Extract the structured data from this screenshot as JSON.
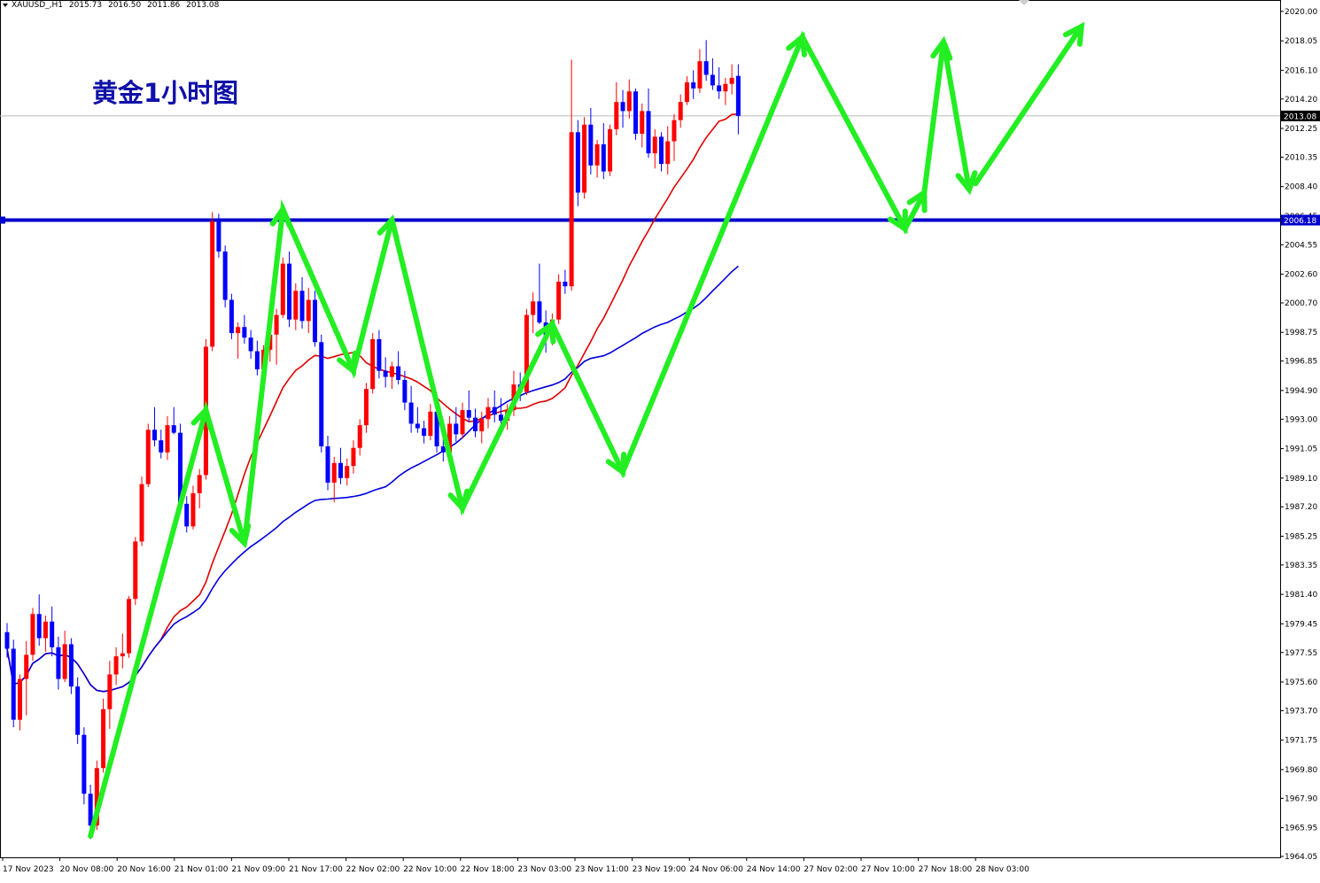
{
  "header": {
    "symbol": "XAUUSD_,H1",
    "open": "2015.73",
    "high": "2016.50",
    "low": "2011.86",
    "close": "2013.08"
  },
  "annotation": "黄金1小时图",
  "colors": {
    "bull": "#ff0000",
    "bear": "#0000ff",
    "ma_fast": "#e00000",
    "ma_slow": "#0000dd",
    "support": "#0000cc",
    "arrow": "#22ee22",
    "grid_bg": "#ffffff"
  },
  "chart_data": {
    "type": "candlestick",
    "timeframe": "H1",
    "ylim": [
      1964.05,
      2020.05
    ],
    "y_ticks": [
      "2020.00",
      "2018.05",
      "2016.10",
      "2014.20",
      "2012.25",
      "2010.35",
      "2008.40",
      "2006.45",
      "2004.55",
      "2002.60",
      "2000.70",
      "1998.75",
      "1996.85",
      "1994.90",
      "1993.00",
      "1991.05",
      "1989.10",
      "1987.20",
      "1985.25",
      "1983.35",
      "1981.40",
      "1979.45",
      "1977.55",
      "1975.60",
      "1973.70",
      "1971.75",
      "1969.80",
      "1967.90",
      "1965.95",
      "1964.05"
    ],
    "x_labels": [
      "17 Nov 2023",
      "20 Nov 08:00",
      "20 Nov 16:00",
      "21 Nov 01:00",
      "21 Nov 09:00",
      "21 Nov 17:00",
      "22 Nov 02:00",
      "22 Nov 10:00",
      "22 Nov 18:00",
      "23 Nov 03:00",
      "23 Nov 11:00",
      "23 Nov 19:00",
      "24 Nov 06:00",
      "24 Nov 14:00",
      "27 Nov 02:00",
      "27 Nov 10:00",
      "27 Nov 18:00",
      "28 Nov 03:00"
    ],
    "current_price": "2013.08",
    "support_level": "2006.18",
    "candles": [
      [
        1978.9,
        1979.5,
        1977.2,
        1977.8
      ],
      [
        1977.8,
        1978.4,
        1972.6,
        1973.1
      ],
      [
        1973.1,
        1976.1,
        1972.4,
        1975.8
      ],
      [
        1975.8,
        1978.3,
        1973.4,
        1977.4
      ],
      [
        1977.4,
        1980.5,
        1977.0,
        1980.1
      ],
      [
        1980.1,
        1981.4,
        1978.0,
        1978.5
      ],
      [
        1978.5,
        1980.0,
        1977.6,
        1979.6
      ],
      [
        1979.6,
        1980.6,
        1977.3,
        1977.9
      ],
      [
        1977.9,
        1978.6,
        1975.1,
        1975.8
      ],
      [
        1975.8,
        1979.0,
        1975.6,
        1978.1
      ],
      [
        1978.1,
        1978.5,
        1974.8,
        1975.3
      ],
      [
        1975.3,
        1975.9,
        1971.5,
        1972.1
      ],
      [
        1972.1,
        1972.6,
        1967.5,
        1968.2
      ],
      [
        1968.2,
        1968.8,
        1965.2,
        1966.1
      ],
      [
        1966.1,
        1970.4,
        1965.8,
        1969.9
      ],
      [
        1969.9,
        1974.5,
        1969.6,
        1973.8
      ],
      [
        1973.8,
        1977.0,
        1972.5,
        1976.1
      ],
      [
        1976.1,
        1977.9,
        1975.4,
        1977.3
      ],
      [
        1977.3,
        1978.8,
        1976.5,
        1977.5
      ],
      [
        1977.5,
        1981.3,
        1977.2,
        1981.1
      ],
      [
        1981.1,
        1985.2,
        1980.7,
        1984.9
      ],
      [
        1984.9,
        1989.2,
        1984.6,
        1988.7
      ],
      [
        1988.7,
        1992.7,
        1988.5,
        1992.3
      ],
      [
        1992.3,
        1993.8,
        1991.2,
        1991.6
      ],
      [
        1991.6,
        1992.3,
        1990.4,
        1990.8
      ],
      [
        1990.8,
        1993.2,
        1990.3,
        1992.6
      ],
      [
        1992.6,
        1993.8,
        1992.0,
        1992.1
      ],
      [
        1992.1,
        1992.7,
        1986.9,
        1987.4
      ],
      [
        1987.4,
        1987.9,
        1985.5,
        1985.9
      ],
      [
        1985.9,
        1988.6,
        1985.7,
        1988.1
      ],
      [
        1988.1,
        1989.7,
        1987.1,
        1989.3
      ],
      [
        1989.3,
        1998.3,
        1989.0,
        1997.8
      ],
      [
        1997.8,
        2006.7,
        1997.5,
        2006.1
      ],
      [
        2006.1,
        2006.6,
        2003.7,
        2004.1
      ],
      [
        2004.1,
        2004.5,
        2000.4,
        2000.9
      ],
      [
        2000.9,
        2001.3,
        1998.3,
        1998.7
      ],
      [
        1998.7,
        1999.4,
        1997.0,
        1999.1
      ],
      [
        1999.1,
        1999.9,
        1998.0,
        1998.4
      ],
      [
        1998.4,
        1998.9,
        1997.0,
        1997.5
      ],
      [
        1997.5,
        1998.2,
        1995.9,
        1996.3
      ],
      [
        1996.3,
        1997.9,
        1995.8,
        1997.6
      ],
      [
        1997.6,
        1998.9,
        1996.8,
        1998.6
      ],
      [
        1998.6,
        2000.3,
        1996.6,
        1999.9
      ],
      [
        1999.9,
        2003.7,
        1999.7,
        2003.3
      ],
      [
        2003.3,
        2004.1,
        1999.1,
        1999.6
      ],
      [
        1999.6,
        2002.0,
        1998.9,
        2001.5
      ],
      [
        2001.5,
        2002.4,
        1999.0,
        1999.5
      ],
      [
        1999.5,
        2001.7,
        1998.7,
        2000.9
      ],
      [
        2000.9,
        2001.5,
        1997.8,
        1998.1
      ],
      [
        1998.1,
        1998.6,
        1990.8,
        1991.2
      ],
      [
        1991.2,
        1991.9,
        1988.3,
        1988.8
      ],
      [
        1988.8,
        1990.5,
        1987.5,
        1990.1
      ],
      [
        1990.1,
        1991.1,
        1988.7,
        1989.1
      ],
      [
        1989.1,
        1990.4,
        1988.6,
        1989.9
      ],
      [
        1989.9,
        1991.6,
        1989.4,
        1991.1
      ],
      [
        1991.1,
        1993.0,
        1990.6,
        1992.6
      ],
      [
        1992.6,
        1995.4,
        1992.1,
        1995.0
      ],
      [
        1995.0,
        1998.7,
        1994.7,
        1998.3
      ],
      [
        1998.3,
        1998.9,
        1995.7,
        1996.2
      ],
      [
        1996.2,
        1997.1,
        1995.1,
        1995.8
      ],
      [
        1995.8,
        1996.8,
        1995.0,
        1996.5
      ],
      [
        1996.5,
        1997.5,
        1995.3,
        1995.6
      ],
      [
        1995.6,
        1996.2,
        1993.6,
        1994.1
      ],
      [
        1994.1,
        1995.2,
        1992.1,
        1992.7
      ],
      [
        1992.7,
        1993.8,
        1992.1,
        1992.4
      ],
      [
        1992.4,
        1992.9,
        1991.4,
        1991.9
      ],
      [
        1991.9,
        1994.0,
        1991.6,
        1993.5
      ],
      [
        1993.5,
        1994.1,
        1990.8,
        1991.2
      ],
      [
        1991.2,
        1992.1,
        1990.2,
        1990.8
      ],
      [
        1990.8,
        1993.2,
        1990.5,
        1992.7
      ],
      [
        1992.7,
        1993.8,
        1991.5,
        1992.0
      ],
      [
        1992.0,
        1994.1,
        1991.7,
        1993.6
      ],
      [
        1993.6,
        1994.9,
        1992.8,
        1993.1
      ],
      [
        1993.1,
        1993.7,
        1991.8,
        1992.2
      ],
      [
        1992.2,
        1993.5,
        1991.4,
        1993.0
      ],
      [
        1993.0,
        1994.4,
        1992.4,
        1993.8
      ],
      [
        1993.8,
        1994.9,
        1992.8,
        1993.3
      ],
      [
        1993.3,
        1994.4,
        1992.7,
        1992.9
      ],
      [
        1992.9,
        1994.0,
        1992.3,
        1993.6
      ],
      [
        1993.6,
        1996.2,
        1993.2,
        1995.3
      ],
      [
        1995.3,
        1996.1,
        1994.2,
        1994.8
      ],
      [
        1994.8,
        2000.3,
        1994.6,
        1999.9
      ],
      [
        1999.9,
        2001.4,
        1998.7,
        2000.8
      ],
      [
        2000.8,
        2003.3,
        1999.3,
        1999.4
      ],
      [
        1999.4,
        2000.2,
        1997.4,
        1998.3
      ],
      [
        1998.3,
        2000.0,
        1997.9,
        1999.6
      ],
      [
        1999.6,
        2002.6,
        1999.3,
        2002.1
      ],
      [
        2002.1,
        2002.9,
        2001.3,
        2001.8
      ],
      [
        2001.8,
        2016.8,
        2001.5,
        2012.0
      ],
      [
        2012.0,
        2012.8,
        2007.1,
        2008.0
      ],
      [
        2008.0,
        2013.0,
        2007.6,
        2012.5
      ],
      [
        2012.5,
        2013.6,
        2009.2,
        2009.8
      ],
      [
        2009.8,
        2011.5,
        2009.0,
        2011.2
      ],
      [
        2011.2,
        2012.6,
        2008.9,
        2009.4
      ],
      [
        2009.4,
        2012.5,
        2009.1,
        2012.2
      ],
      [
        2012.2,
        2015.3,
        2011.8,
        2014.0
      ],
      [
        2014.0,
        2014.8,
        2012.3,
        2013.4
      ],
      [
        2013.4,
        2015.5,
        2012.9,
        2014.7
      ],
      [
        2014.7,
        2014.9,
        2011.5,
        2011.9
      ],
      [
        2011.9,
        2013.9,
        2011.0,
        2013.4
      ],
      [
        2013.4,
        2014.9,
        2010.3,
        2010.6
      ],
      [
        2010.6,
        2012.2,
        2009.6,
        2011.7
      ],
      [
        2011.7,
        2012.0,
        2009.4,
        2009.9
      ],
      [
        2009.9,
        2012.4,
        2009.2,
        2011.4
      ],
      [
        2011.4,
        2013.2,
        2010.1,
        2012.8
      ],
      [
        2012.8,
        2014.5,
        2012.3,
        2014.0
      ],
      [
        2014.0,
        2015.7,
        2013.8,
        2015.3
      ],
      [
        2015.3,
        2016.1,
        2014.2,
        2014.9
      ],
      [
        2014.9,
        2017.5,
        2014.6,
        2016.7
      ],
      [
        2016.7,
        2018.1,
        2015.4,
        2015.8
      ],
      [
        2015.8,
        2016.9,
        2014.8,
        2015.1
      ],
      [
        2015.1,
        2016.3,
        2014.2,
        2014.7
      ],
      [
        2014.7,
        2015.6,
        2013.8,
        2015.2
      ],
      [
        2015.2,
        2016.5,
        2014.5,
        2015.6
      ],
      [
        2015.73,
        2016.5,
        2011.86,
        2013.08
      ]
    ]
  }
}
